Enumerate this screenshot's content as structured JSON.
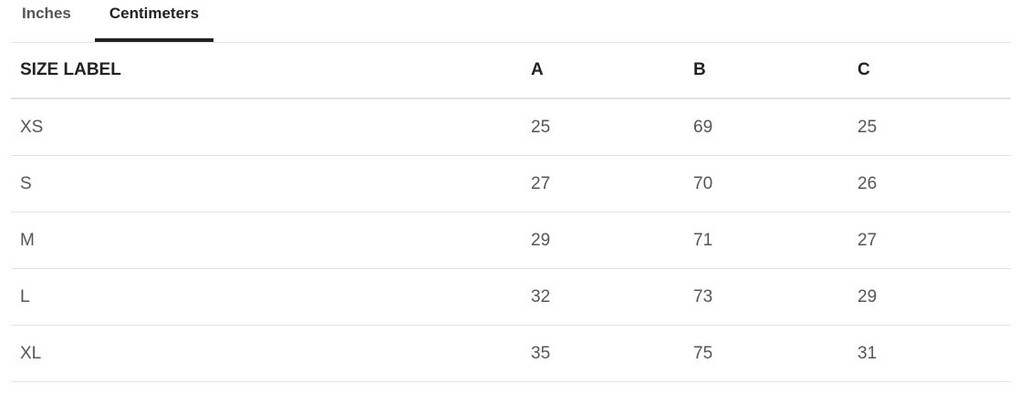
{
  "tabs": [
    {
      "label": "Inches",
      "active": false
    },
    {
      "label": "Centimeters",
      "active": true
    }
  ],
  "table": {
    "headers": [
      "SIZE LABEL",
      "A",
      "B",
      "C"
    ],
    "rows": [
      [
        "XS",
        "25",
        "69",
        "25"
      ],
      [
        "S",
        "27",
        "70",
        "26"
      ],
      [
        "M",
        "29",
        "71",
        "27"
      ],
      [
        "L",
        "32",
        "73",
        "29"
      ],
      [
        "XL",
        "35",
        "75",
        "31"
      ]
    ]
  }
}
